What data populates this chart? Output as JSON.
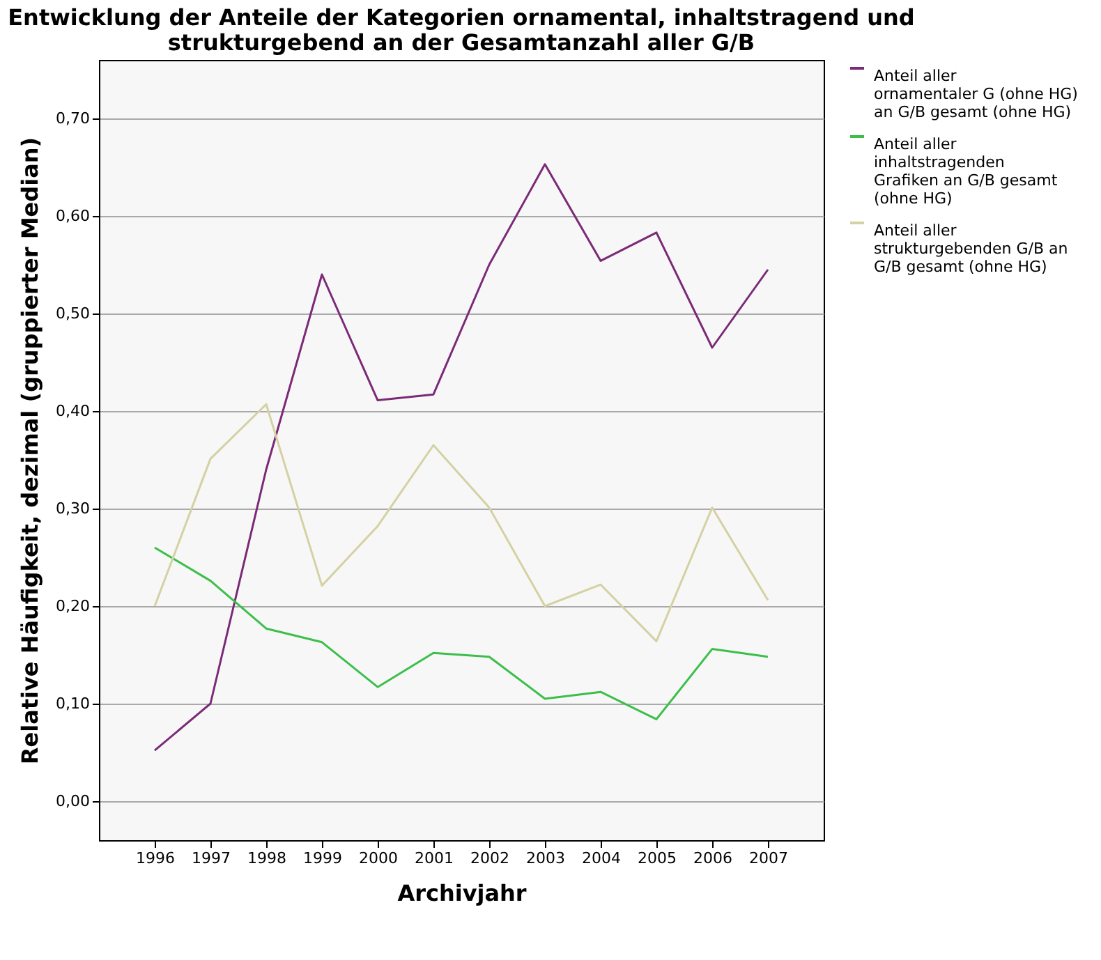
{
  "chart_data": {
    "type": "line",
    "title": "Entwicklung der Anteile der Kategorien ornamental, inhaltstragend und strukturgebend an der Gesamtanzahl aller G/B",
    "xlabel": "Archivjahr",
    "ylabel": "Relative Häufigkeit, dezimal (gruppierter Median)",
    "categories": [
      "1996",
      "1997",
      "1998",
      "1999",
      "2000",
      "2001",
      "2002",
      "2003",
      "2004",
      "2005",
      "2006",
      "2007"
    ],
    "series": [
      {
        "name": "Anteil aller ornamentaler G (ohne HG) an G/B gesamt (ohne HG)",
        "color": "#7b2a77",
        "values": [
          0.052,
          0.1,
          0.34,
          0.54,
          0.411,
          0.417,
          0.55,
          0.653,
          0.554,
          0.583,
          0.465,
          0.545
        ]
      },
      {
        "name": "Anteil aller inhaltstragenden Grafiken an G/B gesamt (ohne HG)",
        "color": "#3cbf4a",
        "values": [
          0.26,
          0.226,
          0.177,
          0.163,
          0.117,
          0.152,
          0.148,
          0.105,
          0.112,
          0.084,
          0.156,
          0.148
        ]
      },
      {
        "name": "Anteil aller strukturgebenden G/B an G/B gesamt (ohne HG)",
        "color": "#d4d1a3",
        "values": [
          0.2,
          0.351,
          0.407,
          0.221,
          0.282,
          0.365,
          0.301,
          0.2,
          0.222,
          0.164,
          0.301,
          0.206
        ]
      }
    ],
    "ylim": [
      -0.04,
      0.76
    ],
    "yticks": [
      {
        "value": 0,
        "label": "0,00"
      },
      {
        "value": 0.1,
        "label": "0,10"
      },
      {
        "value": 0.2,
        "label": "0,20"
      },
      {
        "value": 0.3,
        "label": "0,30"
      },
      {
        "value": 0.4,
        "label": "0,40"
      },
      {
        "value": 0.5,
        "label": "0,50"
      },
      {
        "value": 0.6,
        "label": "0,60"
      },
      {
        "value": 0.7,
        "label": "0,70"
      }
    ],
    "grid": "y",
    "legend": "top right",
    "marker": "none",
    "line_style": "solid"
  }
}
